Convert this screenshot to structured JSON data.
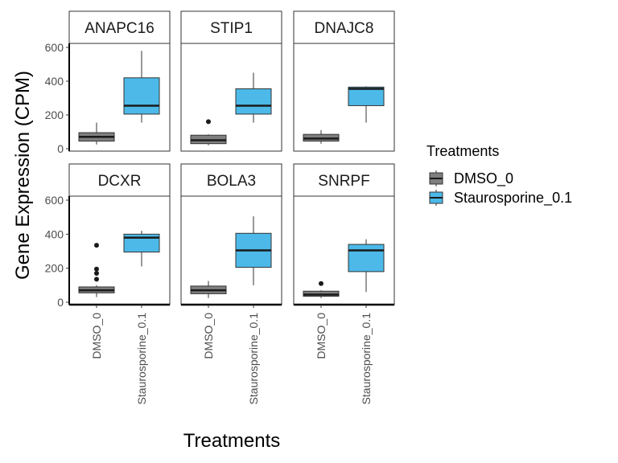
{
  "chart_data": {
    "type": "boxplot",
    "xlabel": "Treatments",
    "ylabel": "Gene Expression (CPM)",
    "ylim": [
      0,
      610
    ],
    "yticks": [
      0,
      200,
      400,
      600
    ],
    "categories": [
      "DMSO_0",
      "Staurosporine_0.1"
    ],
    "colors": {
      "DMSO_0": "#7f7f80",
      "Staurosporine_0.1": "#4cb9e8"
    },
    "legend": {
      "title": "Treatments",
      "position": "right",
      "entries": [
        "DMSO_0",
        "Staurosporine_0.1"
      ]
    },
    "grid": false,
    "facets": [
      {
        "title": "ANAPC16",
        "boxes": [
          {
            "group": "DMSO_0",
            "min": 25,
            "q1": 45,
            "median": 70,
            "q3": 95,
            "max": 155,
            "outliers": []
          },
          {
            "group": "Staurosporine_0.1",
            "min": 155,
            "q1": 205,
            "median": 255,
            "q3": 420,
            "max": 580,
            "outliers": []
          }
        ]
      },
      {
        "title": "STIP1",
        "boxes": [
          {
            "group": "DMSO_0",
            "min": 20,
            "q1": 30,
            "median": 50,
            "q3": 80,
            "max": 85,
            "outliers": [
              160
            ]
          },
          {
            "group": "Staurosporine_0.1",
            "min": 155,
            "q1": 205,
            "median": 255,
            "q3": 355,
            "max": 450,
            "outliers": []
          }
        ]
      },
      {
        "title": "DNAJC8",
        "boxes": [
          {
            "group": "DMSO_0",
            "min": 30,
            "q1": 45,
            "median": 60,
            "q3": 85,
            "max": 110,
            "outliers": []
          },
          {
            "group": "Staurosporine_0.1",
            "min": 155,
            "q1": 255,
            "median": 355,
            "q3": 365,
            "max": 370,
            "outliers": []
          }
        ]
      },
      {
        "title": "DCXR",
        "boxes": [
          {
            "group": "DMSO_0",
            "min": 30,
            "q1": 55,
            "median": 70,
            "q3": 90,
            "max": 100,
            "outliers": [
              135,
              170,
              195,
              335
            ]
          },
          {
            "group": "Staurosporine_0.1",
            "min": 210,
            "q1": 295,
            "median": 380,
            "q3": 400,
            "max": 420,
            "outliers": []
          }
        ]
      },
      {
        "title": "BOLA3",
        "boxes": [
          {
            "group": "DMSO_0",
            "min": 25,
            "q1": 50,
            "median": 70,
            "q3": 95,
            "max": 125,
            "outliers": []
          },
          {
            "group": "Staurosporine_0.1",
            "min": 100,
            "q1": 205,
            "median": 305,
            "q3": 405,
            "max": 505,
            "outliers": []
          }
        ]
      },
      {
        "title": "SNRPF",
        "boxes": [
          {
            "group": "DMSO_0",
            "min": 25,
            "q1": 35,
            "median": 45,
            "q3": 65,
            "max": 70,
            "outliers": [
              110
            ]
          },
          {
            "group": "Staurosporine_0.1",
            "min": 60,
            "q1": 180,
            "median": 305,
            "q3": 340,
            "max": 370,
            "outliers": []
          }
        ]
      }
    ]
  }
}
